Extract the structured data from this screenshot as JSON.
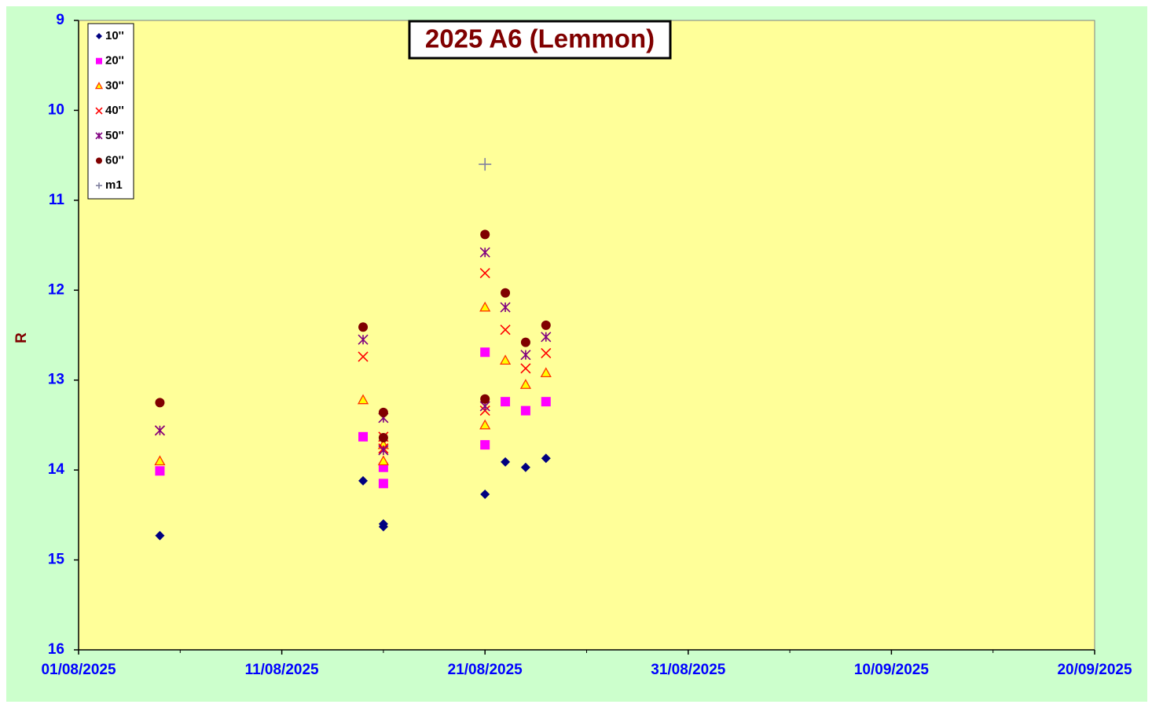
{
  "chart_data": {
    "type": "scatter",
    "title": "2025 A6 (Lemmon)",
    "y_label": "R",
    "y_inverted": true,
    "xlim": [
      "01/08/2025",
      "20/09/2025"
    ],
    "xticks": [
      "01/08/2025",
      "11/08/2025",
      "21/08/2025",
      "31/08/2025",
      "10/09/2025",
      "20/09/2025"
    ],
    "xminorticks": [
      "06/08/2025",
      "16/08/2025",
      "26/08/2025",
      "05/09/2025",
      "15/09/2025"
    ],
    "ylim": [
      9,
      16
    ],
    "yticks": [
      9,
      10,
      11,
      12,
      13,
      14,
      15,
      16
    ],
    "legend": "top-left",
    "series": [
      {
        "name": "10''",
        "color": "#000080",
        "marker": "diamond",
        "x": [
          "05/08/2025",
          "15/08/2025",
          "16/08/2025",
          "16/08/2025",
          "21/08/2025",
          "22/08/2025",
          "23/08/2025",
          "24/08/2025"
        ],
        "values": [
          14.73,
          14.12,
          14.6,
          14.63,
          14.27,
          13.91,
          13.97,
          13.87
        ]
      },
      {
        "name": "20''",
        "color": "#ff00ff",
        "marker": "square",
        "x": [
          "05/08/2025",
          "15/08/2025",
          "16/08/2025",
          "16/08/2025",
          "21/08/2025",
          "21/08/2025",
          "22/08/2025",
          "23/08/2025",
          "24/08/2025"
        ],
        "values": [
          14.01,
          13.63,
          13.97,
          14.15,
          12.69,
          13.72,
          13.24,
          13.34,
          13.24
        ]
      },
      {
        "name": "30''",
        "color": "#ff3300",
        "marker": "triangle",
        "x": [
          "05/08/2025",
          "15/08/2025",
          "16/08/2025",
          "16/08/2025",
          "21/08/2025",
          "21/08/2025",
          "22/08/2025",
          "23/08/2025",
          "24/08/2025"
        ],
        "values": [
          13.9,
          13.22,
          13.9,
          13.72,
          12.19,
          13.5,
          12.78,
          13.05,
          12.92
        ]
      },
      {
        "name": "40''",
        "color": "#ff0000",
        "marker": "x",
        "x": [
          "05/08/2025",
          "15/08/2025",
          "16/08/2025",
          "16/08/2025",
          "21/08/2025",
          "21/08/2025",
          "22/08/2025",
          "23/08/2025",
          "24/08/2025"
        ],
        "values": [
          13.56,
          12.74,
          13.76,
          13.63,
          11.81,
          13.34,
          12.44,
          12.87,
          12.7
        ]
      },
      {
        "name": "50''",
        "color": "#800080",
        "marker": "star",
        "x": [
          "05/08/2025",
          "15/08/2025",
          "16/08/2025",
          "16/08/2025",
          "21/08/2025",
          "21/08/2025",
          "22/08/2025",
          "23/08/2025",
          "24/08/2025"
        ],
        "values": [
          13.56,
          12.55,
          13.42,
          13.78,
          11.58,
          13.29,
          12.19,
          12.72,
          12.52
        ]
      },
      {
        "name": "60''",
        "color": "#800000",
        "marker": "circle",
        "x": [
          "05/08/2025",
          "15/08/2025",
          "16/08/2025",
          "16/08/2025",
          "21/08/2025",
          "21/08/2025",
          "22/08/2025",
          "23/08/2025",
          "24/08/2025"
        ],
        "values": [
          13.25,
          12.41,
          13.36,
          13.64,
          11.38,
          13.21,
          12.03,
          12.58,
          12.39
        ]
      },
      {
        "name": "m1",
        "color": "#8080a0",
        "marker": "plus",
        "x": [
          "21/08/2025"
        ],
        "values": [
          10.6
        ]
      }
    ]
  }
}
